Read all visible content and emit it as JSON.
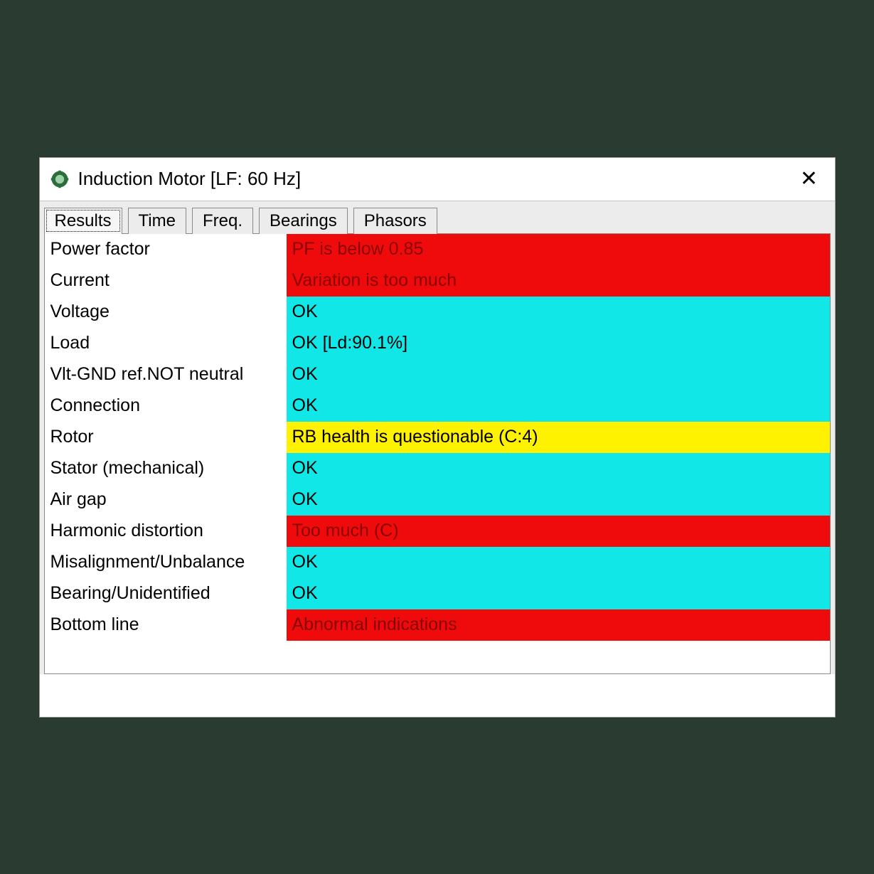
{
  "window": {
    "title": "Induction Motor   [LF: 60 Hz]",
    "close_glyph": "✕"
  },
  "tabs": [
    {
      "label": "Results",
      "active": true
    },
    {
      "label": "Time",
      "active": false
    },
    {
      "label": "Freq.",
      "active": false
    },
    {
      "label": "Bearings",
      "active": false
    },
    {
      "label": "Phasors",
      "active": false
    }
  ],
  "status_colors": {
    "critical": {
      "bg": "#ef0b0b",
      "text": "#8a0000"
    },
    "ok": {
      "bg": "#12e7e7",
      "text": "#000000"
    },
    "warning": {
      "bg": "#fff200",
      "text": "#000000"
    }
  },
  "rows": [
    {
      "label": "Power factor",
      "value": "PF is below 0.85",
      "status": "critical"
    },
    {
      "label": "Current",
      "value": "Variation is too much",
      "status": "critical"
    },
    {
      "label": "Voltage",
      "value": "OK",
      "status": "ok"
    },
    {
      "label": "Load",
      "value": "OK [Ld:90.1%]",
      "status": "ok"
    },
    {
      "label": "Vlt-GND ref.NOT neutral",
      "value": "OK",
      "status": "ok"
    },
    {
      "label": "Connection",
      "value": "OK",
      "status": "ok"
    },
    {
      "label": "Rotor",
      "value": "RB health is questionable (C:4)",
      "status": "warning"
    },
    {
      "label": "Stator (mechanical)",
      "value": "OK",
      "status": "ok"
    },
    {
      "label": "Air gap",
      "value": "OK",
      "status": "ok"
    },
    {
      "label": "Harmonic distortion",
      "value": "Too much (C)",
      "status": "critical"
    },
    {
      "label": "Misalignment/Unbalance",
      "value": "OK",
      "status": "ok"
    },
    {
      "label": "Bearing/Unidentified",
      "value": "OK",
      "status": "ok"
    },
    {
      "label": "Bottom line",
      "value": "Abnormal indications",
      "status": "critical"
    }
  ]
}
